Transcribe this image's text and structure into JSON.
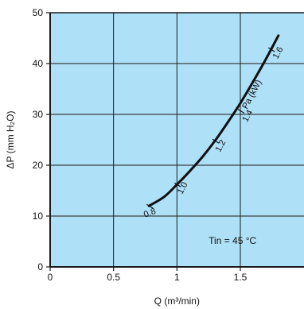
{
  "colors": {
    "plot_background": "#aee0f7",
    "grid": "#1a1a1a",
    "curve": "#111111",
    "text": "#111111"
  },
  "chart_data": {
    "type": "line",
    "title": "",
    "xlabel": "Q (m³/min)",
    "ylabel": "ΔP (mm H₂O)",
    "xlim": [
      0,
      2.0
    ],
    "ylim": [
      0,
      50
    ],
    "x_ticks": [
      0,
      0.5,
      1,
      1.5
    ],
    "x_tick_labels": [
      "0",
      "0.5",
      "1",
      "1.5"
    ],
    "y_ticks": [
      0,
      10,
      20,
      30,
      40,
      50
    ],
    "y_tick_labels": [
      "0",
      "10",
      "20",
      "30",
      "40",
      "50"
    ],
    "grid": true,
    "series": [
      {
        "name": "Pa (kW)",
        "points": [
          {
            "x": 0.78,
            "y": 12.0
          },
          {
            "x": 0.9,
            "y": 13.8
          },
          {
            "x": 1.0,
            "y": 16.2
          },
          {
            "x": 1.1,
            "y": 18.8
          },
          {
            "x": 1.2,
            "y": 21.6
          },
          {
            "x": 1.3,
            "y": 24.8
          },
          {
            "x": 1.4,
            "y": 28.4
          },
          {
            "x": 1.5,
            "y": 32.2
          },
          {
            "x": 1.6,
            "y": 36.4
          },
          {
            "x": 1.7,
            "y": 40.8
          },
          {
            "x": 1.8,
            "y": 45.5
          }
        ],
        "curve_label": "Pa (kW)",
        "point_annotations": [
          {
            "label": "0.8",
            "x": 0.78,
            "y": 12.0
          },
          {
            "label": "1.0",
            "x": 1.0,
            "y": 16.2
          },
          {
            "label": "1.2",
            "x": 1.3,
            "y": 24.8
          },
          {
            "label": "1.4",
            "x": 1.5,
            "y": 30.7
          },
          {
            "label": "1.6",
            "x": 1.74,
            "y": 42.8
          }
        ]
      }
    ],
    "annotations": [
      {
        "text": "Tin = 45 °C",
        "x": 1.25,
        "y": 4.5
      }
    ]
  }
}
